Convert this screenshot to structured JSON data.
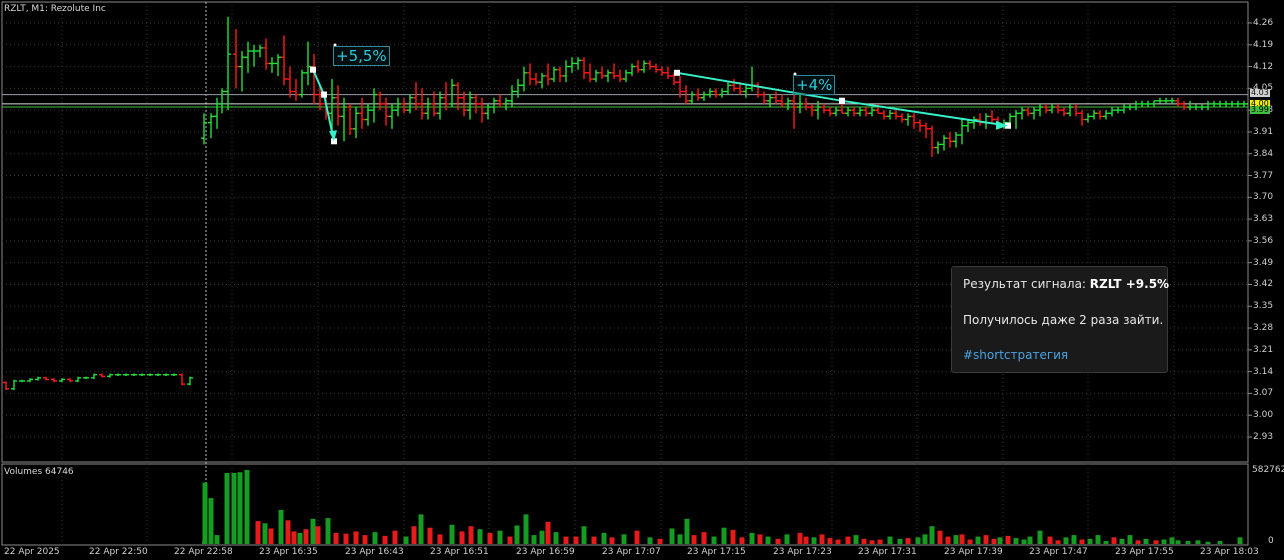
{
  "header": {
    "symbol_title": "RZLT, M1:  Rezolute Inc"
  },
  "volume_pane": {
    "title": "Volumes 64746",
    "max_label": "582762",
    "zero_label": "0"
  },
  "colors": {
    "bull": "#22e03a",
    "bear": "#ff1a1a",
    "grid": "#3a3a3a",
    "axis_text": "#cfcfcf",
    "trend": "#36f0c8",
    "vol_bull": "#169c22",
    "vol_bear": "#e61c1c"
  },
  "chart_data": {
    "type": "bar",
    "symbol": "RZLT",
    "timeframe": "M1",
    "price_axis": {
      "ticks": [
        "4.26",
        "4.19",
        "4.12",
        "4.05",
        "3.98",
        "3.91",
        "3.84",
        "3.77",
        "3.70",
        "3.63",
        "3.56",
        "3.49",
        "3.42",
        "3.35",
        "3.28",
        "3.21",
        "3.14",
        "3.07",
        "3.00",
        "2.93"
      ],
      "range": [
        2.93,
        4.28
      ]
    },
    "current_price_labels": [
      "4.03",
      "4.00",
      "3.99"
    ],
    "horizontal_levels": [
      4.03,
      4.0,
      3.99
    ],
    "time_axis": [
      "22 Apr 2025",
      "22 Apr 22:50",
      "22 Apr 22:58",
      "23 Apr 16:35",
      "23 Apr 16:43",
      "23 Apr 16:51",
      "23 Apr 16:59",
      "23 Apr 17:07",
      "23 Apr 17:15",
      "23 Apr 17:23",
      "23 Apr 17:31",
      "23 Apr 17:39",
      "23 Apr 17:47",
      "23 Apr 17:55",
      "23 Apr 18:03"
    ],
    "annotations": [
      {
        "text": "+5,5%",
        "from_price": 4.11,
        "to_price": 3.88
      },
      {
        "text": "+4%",
        "from_price": 4.1,
        "to_price": 3.93
      }
    ]
  },
  "message": {
    "result_prefix": "Результат сигнала: ",
    "result_value": "RZLT +9.5%",
    "line2": "Получилось даже 2 раза зайти.",
    "hashtag": "#shortстратегия"
  }
}
